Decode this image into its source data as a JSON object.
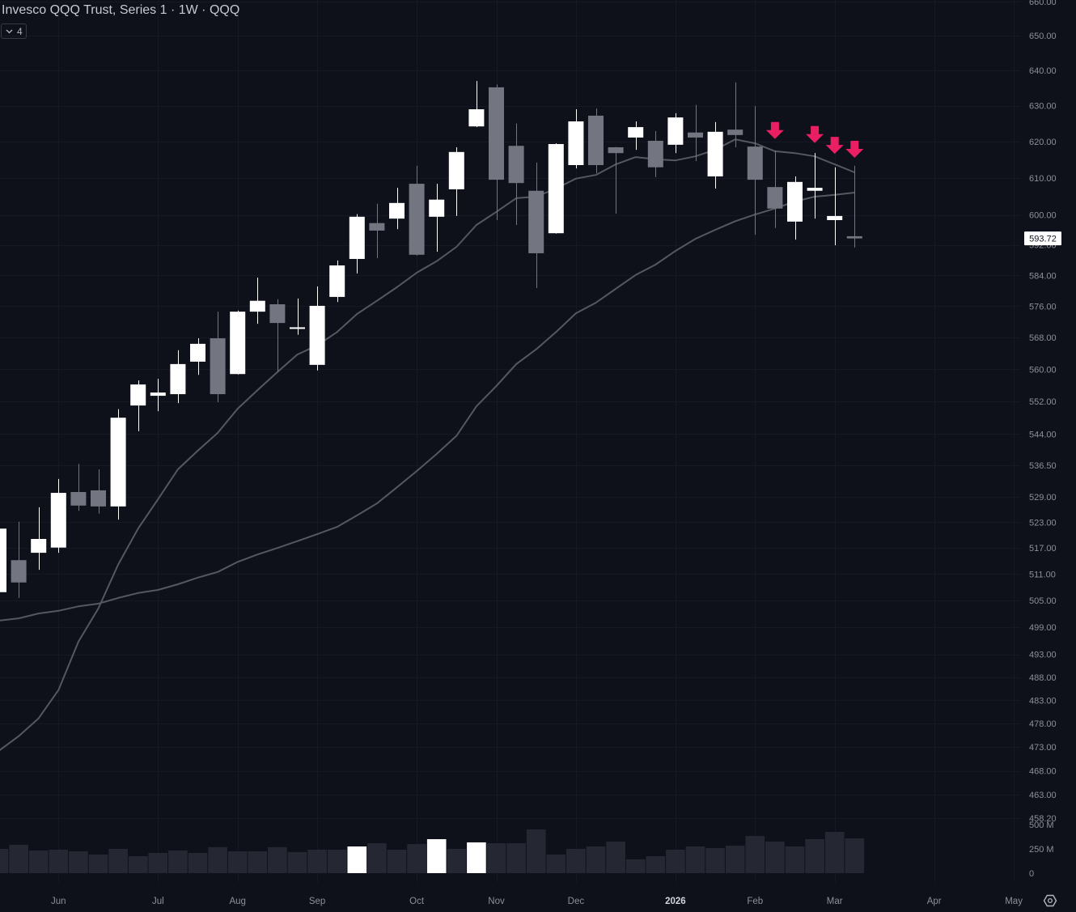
{
  "header": {
    "title": "Invesco QQQ Trust, Series 1 · 1W · QQQ",
    "indicators_badge": {
      "icon": "chevron-down-icon",
      "count": "4"
    }
  },
  "footer": {
    "settings_icon": "gear-hexagon-icon"
  },
  "colors": {
    "background": "#0f111a",
    "grid": "#161923",
    "up_candle": "#ffffff",
    "down_candle": "#737680",
    "moving_average": "#55585f",
    "signal_arrow": "#e91e63",
    "volume": "#252833",
    "volume_highlight": "#ffffff",
    "axis_text": "#8d9099",
    "axis_text_bold": "#d1d4dc",
    "last_price_bg": "#ffffff",
    "last_price_text": "#131722"
  },
  "chart_data": {
    "type": "candlestick",
    "title": "Invesco QQQ Trust, Series 1 · 1W · QQQ",
    "symbol": "QQQ",
    "interval": "1W",
    "xlabel": "",
    "ylabel": "",
    "y_scale": "log",
    "ylim": [
      458.2,
      660.0
    ],
    "grid": true,
    "last_price": 593.72,
    "last_price_label": "593.72",
    "price_ticks": [
      {
        "value": 660,
        "label": "660.00"
      },
      {
        "value": 650,
        "label": "650.00"
      },
      {
        "value": 640,
        "label": "640.00"
      },
      {
        "value": 630,
        "label": "630.00"
      },
      {
        "value": 620,
        "label": "620.00"
      },
      {
        "value": 610,
        "label": "610.00"
      },
      {
        "value": 600,
        "label": "600.00"
      },
      {
        "value": 592,
        "label": "592.00"
      },
      {
        "value": 584,
        "label": "584.00"
      },
      {
        "value": 576,
        "label": "576.00"
      },
      {
        "value": 568,
        "label": "568.00"
      },
      {
        "value": 560,
        "label": "560.00"
      },
      {
        "value": 552,
        "label": "552.00"
      },
      {
        "value": 544,
        "label": "544.00"
      },
      {
        "value": 536.5,
        "label": "536.50"
      },
      {
        "value": 529,
        "label": "529.00"
      },
      {
        "value": 523,
        "label": "523.00"
      },
      {
        "value": 517,
        "label": "517.00"
      },
      {
        "value": 511,
        "label": "511.00"
      },
      {
        "value": 505,
        "label": "505.00"
      },
      {
        "value": 499,
        "label": "499.00"
      },
      {
        "value": 493,
        "label": "493.00"
      },
      {
        "value": 488,
        "label": "488.00"
      },
      {
        "value": 483,
        "label": "483.00"
      },
      {
        "value": 478,
        "label": "478.00"
      },
      {
        "value": 473,
        "label": "473.00"
      },
      {
        "value": 468,
        "label": "468.00"
      },
      {
        "value": 463,
        "label": "463.00"
      },
      {
        "value": 458.2,
        "label": "458.20"
      }
    ],
    "volume_ticks": [
      {
        "value": 500,
        "label": "500 M"
      },
      {
        "value": 250,
        "label": "250 M"
      },
      {
        "value": 0,
        "label": "0"
      }
    ],
    "x_tick_labels": [
      {
        "label": "Jun",
        "bar_index": 3,
        "bold": false
      },
      {
        "label": "Jul",
        "bar_index": 8,
        "bold": false
      },
      {
        "label": "Aug",
        "bar_index": 12,
        "bold": false
      },
      {
        "label": "Sep",
        "bar_index": 16,
        "bold": false
      },
      {
        "label": "Oct",
        "bar_index": 21,
        "bold": false
      },
      {
        "label": "Nov",
        "bar_index": 25,
        "bold": false
      },
      {
        "label": "Dec",
        "bar_index": 29,
        "bold": false
      },
      {
        "label": "2026",
        "bar_index": 34,
        "bold": true
      },
      {
        "label": "Feb",
        "bar_index": 38,
        "bold": false
      },
      {
        "label": "Mar",
        "bar_index": 42,
        "bold": false
      },
      {
        "label": "Apr",
        "bar_index": 47,
        "bold": false
      },
      {
        "label": "May",
        "bar_index": 51,
        "bold": false
      }
    ],
    "ohlc_columns": [
      "open",
      "high",
      "low",
      "close"
    ],
    "ohlc": [
      [
        506.9,
        523.0,
        505.5,
        521.5
      ],
      [
        514.2,
        523.1,
        505.6,
        509.1
      ],
      [
        515.9,
        526.5,
        512.0,
        519.1
      ],
      [
        517.1,
        533.2,
        515.9,
        529.9
      ],
      [
        530.1,
        536.8,
        525.7,
        526.9
      ],
      [
        530.5,
        535.5,
        525.0,
        526.7
      ],
      [
        526.7,
        550.1,
        523.6,
        548.0
      ],
      [
        551.0,
        557.2,
        544.7,
        556.2
      ],
      [
        553.4,
        557.6,
        549.6,
        554.2
      ],
      [
        553.8,
        564.8,
        551.6,
        561.3
      ],
      [
        561.9,
        567.8,
        558.6,
        566.4
      ],
      [
        567.8,
        574.6,
        551.8,
        553.8
      ],
      [
        558.8,
        574.9,
        558.7,
        574.6
      ],
      [
        574.6,
        583.4,
        571.5,
        577.4
      ],
      [
        576.5,
        577.8,
        559.3,
        571.7
      ],
      [
        570.3,
        578.0,
        568.7,
        570.6
      ],
      [
        561.1,
        581.1,
        559.7,
        576.1
      ],
      [
        578.4,
        587.9,
        577.1,
        586.6
      ],
      [
        588.3,
        600.2,
        584.5,
        599.5
      ],
      [
        597.8,
        603.0,
        588.5,
        595.8
      ],
      [
        599.0,
        607.3,
        596.2,
        603.2
      ],
      [
        608.4,
        613.3,
        589.2,
        589.4
      ],
      [
        599.5,
        608.4,
        590.2,
        604.1
      ],
      [
        606.9,
        618.4,
        599.7,
        617.1
      ],
      [
        624.2,
        637.0,
        624.0,
        629.0
      ],
      [
        635.2,
        636.0,
        598.6,
        609.5
      ],
      [
        618.8,
        625.0,
        597.3,
        608.6
      ],
      [
        606.5,
        614.2,
        580.7,
        589.8
      ],
      [
        595.1,
        619.5,
        595.0,
        619.3
      ],
      [
        613.5,
        629.0,
        612.6,
        625.6
      ],
      [
        627.2,
        629.2,
        611.3,
        613.5
      ],
      [
        618.4,
        618.5,
        600.3,
        616.8
      ],
      [
        621.1,
        625.6,
        617.7,
        624.0
      ],
      [
        620.2,
        622.9,
        610.2,
        612.9
      ],
      [
        619.1,
        627.9,
        616.8,
        626.7
      ],
      [
        622.5,
        630.2,
        614.6,
        621.1
      ],
      [
        610.4,
        625.4,
        607.1,
        622.7
      ],
      [
        623.3,
        636.6,
        618.4,
        621.8
      ],
      [
        618.6,
        629.9,
        594.7,
        609.5
      ],
      [
        607.5,
        617.5,
        596.5,
        601.7
      ],
      [
        598.2,
        610.4,
        593.4,
        608.9
      ],
      [
        606.5,
        616.8,
        599.0,
        607.3
      ],
      [
        598.6,
        612.9,
        591.9,
        599.7
      ],
      [
        594.3,
        613.3,
        591.3,
        593.72
      ]
    ],
    "volume_millions": [
      250,
      292,
      233,
      242,
      225,
      192,
      250,
      175,
      208,
      233,
      208,
      267,
      225,
      225,
      267,
      217,
      242,
      242,
      275,
      308,
      242,
      300,
      350,
      250,
      317,
      308,
      308,
      450,
      192,
      250,
      275,
      325,
      142,
      175,
      242,
      275,
      258,
      283,
      383,
      325,
      275,
      350,
      425,
      358
    ],
    "volume_highlight_indices": [
      18,
      22,
      24
    ],
    "series": [
      {
        "name": "moving-average-1",
        "type": "line",
        "values": [
          472.2,
          475.3,
          479.1,
          485.2,
          495.8,
          503.2,
          513.2,
          521.5,
          528.4,
          535.5,
          540.0,
          544.3,
          550.2,
          554.8,
          559.3,
          563.7,
          566.0,
          569.4,
          574.0,
          577.4,
          580.9,
          584.7,
          587.7,
          591.5,
          597.3,
          600.8,
          604.5,
          604.9,
          607.1,
          609.8,
          610.8,
          613.7,
          615.7,
          615.1,
          614.8,
          615.9,
          617.7,
          620.6,
          619.5,
          617.3,
          616.8,
          615.9,
          613.7,
          611.5
        ]
      },
      {
        "name": "moving-average-2",
        "type": "line",
        "values": [
          500.5,
          501.0,
          502.1,
          502.7,
          503.7,
          504.3,
          505.6,
          506.7,
          507.4,
          508.7,
          510.2,
          511.5,
          513.8,
          515.5,
          517.0,
          518.6,
          520.2,
          521.9,
          524.6,
          527.4,
          531.2,
          535.1,
          539.2,
          543.6,
          550.8,
          555.8,
          561.3,
          565.0,
          569.4,
          574.2,
          576.9,
          580.5,
          584.1,
          586.8,
          590.4,
          593.6,
          596.0,
          598.3,
          600.1,
          601.7,
          603.6,
          604.9,
          605.4,
          606.0
        ]
      }
    ],
    "signals": [
      {
        "type": "down-arrow",
        "bar_index": 39,
        "price": 620.7
      },
      {
        "type": "down-arrow",
        "bar_index": 41,
        "price": 619.6
      },
      {
        "type": "down-arrow",
        "bar_index": 42,
        "price": 616.6
      },
      {
        "type": "down-arrow",
        "bar_index": 43,
        "price": 615.5
      }
    ]
  }
}
